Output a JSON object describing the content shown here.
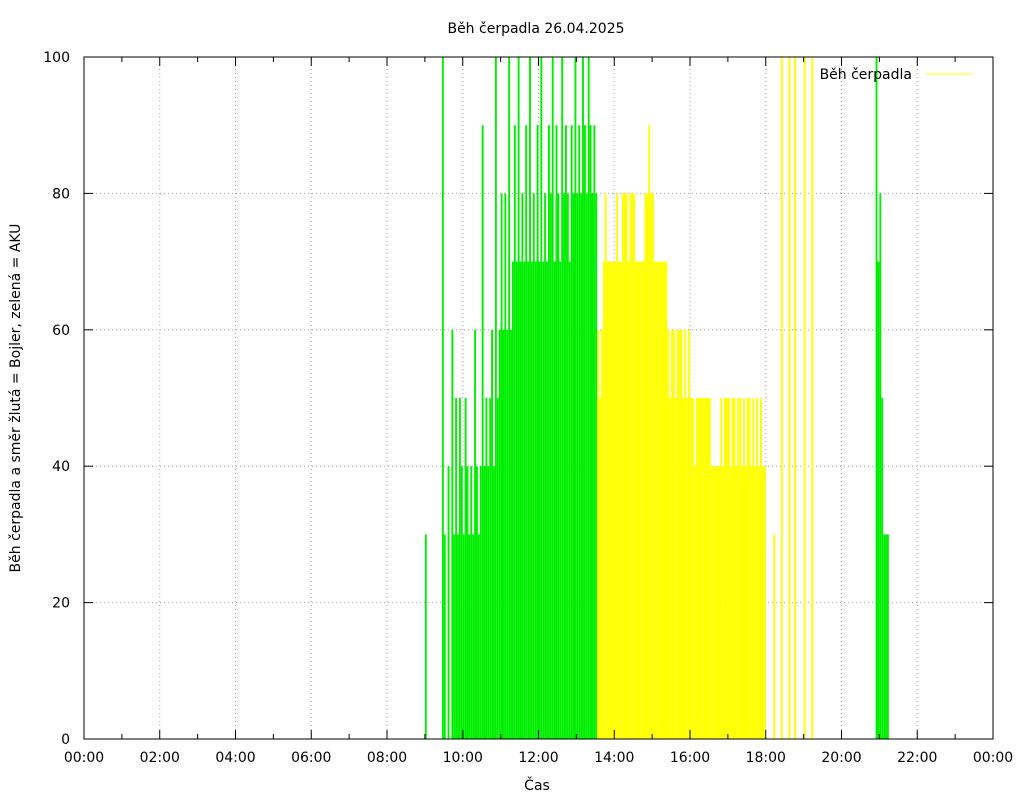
{
  "chart_data": {
    "type": "bar",
    "title": "Běh čerpadla 26.04.2025",
    "xlabel": "Čas",
    "ylabel": "Běh čerpadla a směr žlutá = Bojler, zelená = AKU",
    "ylim": [
      0,
      100
    ],
    "xlim_hours": [
      0,
      24
    ],
    "grid": true,
    "legend": {
      "position": "top-right",
      "label": "Běh čerpadla",
      "color": "#ffff00"
    },
    "colors": {
      "green": "#00ee00",
      "yellow": "#ffff00",
      "frame": "#000000",
      "grid": "#a0a0a0"
    },
    "x_ticks": [
      "00:00",
      "02:00",
      "04:00",
      "06:00",
      "08:00",
      "10:00",
      "12:00",
      "14:00",
      "16:00",
      "18:00",
      "20:00",
      "22:00",
      "00:00"
    ],
    "y_ticks": [
      "0",
      "20",
      "40",
      "60",
      "80",
      "100"
    ],
    "series": [
      {
        "color": "green",
        "bars": [
          [
            9.0,
            30
          ],
          [
            9.45,
            100
          ],
          [
            9.5,
            30
          ],
          [
            9.6,
            40
          ],
          [
            9.7,
            60
          ],
          [
            9.75,
            30
          ],
          [
            9.8,
            50
          ],
          [
            9.85,
            30
          ],
          [
            9.9,
            50
          ],
          [
            9.95,
            40
          ],
          [
            10.0,
            30
          ],
          [
            10.05,
            50
          ],
          [
            10.1,
            40
          ],
          [
            10.15,
            30
          ],
          [
            10.2,
            40
          ],
          [
            10.25,
            30
          ],
          [
            10.3,
            60
          ],
          [
            10.35,
            40
          ],
          [
            10.4,
            30
          ],
          [
            10.45,
            40
          ],
          [
            10.5,
            90
          ],
          [
            10.55,
            40
          ],
          [
            10.6,
            50
          ],
          [
            10.65,
            40
          ],
          [
            10.7,
            50
          ],
          [
            10.75,
            60
          ],
          [
            10.8,
            40
          ],
          [
            10.85,
            100
          ],
          [
            10.9,
            50
          ],
          [
            10.95,
            60
          ],
          [
            11.0,
            80
          ],
          [
            11.05,
            60
          ],
          [
            11.1,
            80
          ],
          [
            11.15,
            60
          ],
          [
            11.2,
            100
          ],
          [
            11.25,
            60
          ],
          [
            11.3,
            70
          ],
          [
            11.35,
            90
          ],
          [
            11.4,
            70
          ],
          [
            11.45,
            100
          ],
          [
            11.5,
            70
          ],
          [
            11.55,
            80
          ],
          [
            11.6,
            70
          ],
          [
            11.65,
            90
          ],
          [
            11.7,
            70
          ],
          [
            11.75,
            100
          ],
          [
            11.8,
            70
          ],
          [
            11.85,
            80
          ],
          [
            11.9,
            70
          ],
          [
            11.95,
            90
          ],
          [
            12.0,
            70
          ],
          [
            12.05,
            100
          ],
          [
            12.1,
            70
          ],
          [
            12.15,
            80
          ],
          [
            12.2,
            70
          ],
          [
            12.25,
            90
          ],
          [
            12.3,
            80
          ],
          [
            12.35,
            100
          ],
          [
            12.4,
            70
          ],
          [
            12.45,
            90
          ],
          [
            12.5,
            80
          ],
          [
            12.55,
            70
          ],
          [
            12.6,
            100
          ],
          [
            12.65,
            80
          ],
          [
            12.7,
            90
          ],
          [
            12.75,
            80
          ],
          [
            12.8,
            70
          ],
          [
            12.85,
            90
          ],
          [
            12.9,
            80
          ],
          [
            12.95,
            100
          ],
          [
            13.0,
            80
          ],
          [
            13.05,
            90
          ],
          [
            13.1,
            80
          ],
          [
            13.15,
            100
          ],
          [
            13.2,
            90
          ],
          [
            13.25,
            80
          ],
          [
            13.3,
            100
          ],
          [
            13.35,
            90
          ],
          [
            13.4,
            80
          ],
          [
            13.45,
            90
          ],
          [
            13.5,
            80
          ],
          [
            20.9,
            100
          ],
          [
            20.95,
            70
          ],
          [
            21.0,
            80
          ],
          [
            21.05,
            50
          ],
          [
            21.1,
            30
          ],
          [
            21.15,
            30
          ],
          [
            21.2,
            30
          ]
        ]
      },
      {
        "color": "yellow",
        "bars": [
          [
            13.55,
            60
          ],
          [
            13.6,
            50
          ],
          [
            13.65,
            60
          ],
          [
            13.7,
            70
          ],
          [
            13.75,
            80
          ],
          [
            13.8,
            70
          ],
          [
            13.85,
            70
          ],
          [
            13.9,
            70
          ],
          [
            13.95,
            70
          ],
          [
            14.0,
            70
          ],
          [
            14.05,
            80
          ],
          [
            14.1,
            70
          ],
          [
            14.15,
            70
          ],
          [
            14.2,
            80
          ],
          [
            14.25,
            80
          ],
          [
            14.3,
            80
          ],
          [
            14.35,
            70
          ],
          [
            14.4,
            80
          ],
          [
            14.45,
            80
          ],
          [
            14.5,
            80
          ],
          [
            14.55,
            70
          ],
          [
            14.6,
            70
          ],
          [
            14.65,
            70
          ],
          [
            14.7,
            70
          ],
          [
            14.75,
            70
          ],
          [
            14.8,
            80
          ],
          [
            14.85,
            80
          ],
          [
            14.9,
            90
          ],
          [
            14.95,
            80
          ],
          [
            15.0,
            80
          ],
          [
            15.05,
            70
          ],
          [
            15.1,
            70
          ],
          [
            15.15,
            70
          ],
          [
            15.2,
            70
          ],
          [
            15.25,
            70
          ],
          [
            15.3,
            70
          ],
          [
            15.35,
            70
          ],
          [
            15.4,
            60
          ],
          [
            15.45,
            50
          ],
          [
            15.5,
            60
          ],
          [
            15.55,
            60
          ],
          [
            15.6,
            50
          ],
          [
            15.65,
            60
          ],
          [
            15.7,
            60
          ],
          [
            15.75,
            60
          ],
          [
            15.8,
            50
          ],
          [
            15.85,
            60
          ],
          [
            15.9,
            50
          ],
          [
            15.95,
            60
          ],
          [
            16.0,
            50
          ],
          [
            16.05,
            50
          ],
          [
            16.1,
            40
          ],
          [
            16.15,
            50
          ],
          [
            16.2,
            50
          ],
          [
            16.25,
            50
          ],
          [
            16.3,
            50
          ],
          [
            16.35,
            50
          ],
          [
            16.4,
            50
          ],
          [
            16.45,
            50
          ],
          [
            16.5,
            50
          ],
          [
            16.55,
            40
          ],
          [
            16.6,
            40
          ],
          [
            16.65,
            40
          ],
          [
            16.7,
            40
          ],
          [
            16.75,
            40
          ],
          [
            16.8,
            50
          ],
          [
            16.85,
            40
          ],
          [
            16.9,
            50
          ],
          [
            16.95,
            50
          ],
          [
            17.0,
            50
          ],
          [
            17.05,
            40
          ],
          [
            17.1,
            50
          ],
          [
            17.15,
            50
          ],
          [
            17.2,
            40
          ],
          [
            17.25,
            50
          ],
          [
            17.3,
            50
          ],
          [
            17.35,
            40
          ],
          [
            17.4,
            50
          ],
          [
            17.45,
            40
          ],
          [
            17.5,
            50
          ],
          [
            17.55,
            50
          ],
          [
            17.6,
            40
          ],
          [
            17.65,
            50
          ],
          [
            17.7,
            40
          ],
          [
            17.75,
            50
          ],
          [
            17.8,
            40
          ],
          [
            17.85,
            50
          ],
          [
            17.9,
            40
          ],
          [
            17.95,
            40
          ],
          [
            18.2,
            30
          ],
          [
            18.4,
            100
          ],
          [
            18.6,
            100
          ],
          [
            18.75,
            100
          ],
          [
            19.0,
            100
          ],
          [
            19.2,
            100
          ]
        ]
      }
    ]
  }
}
